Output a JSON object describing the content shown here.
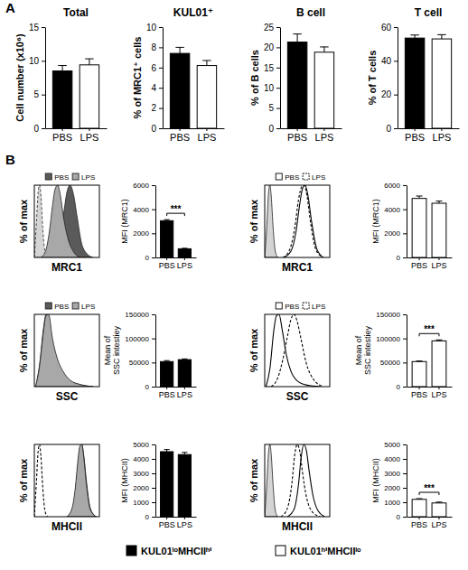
{
  "figure": {
    "panel_labels": [
      "A",
      "B"
    ],
    "groups": [
      {
        "name": "KUL01ˡᵒMHCIIʰⁱ",
        "color": "#000000"
      },
      {
        "name": "KUL01ʰⁱMHCIIˡᵒ",
        "color": "#ffffff"
      }
    ]
  },
  "chart_data": [
    {
      "type": "bar",
      "title": "Total",
      "ylabel": "Cell number (x10⁶)",
      "categories": [
        "PBS",
        "LPS"
      ],
      "values": [
        8.5,
        9.4
      ],
      "errors": [
        0.8,
        0.9
      ],
      "colors": [
        "#000000",
        "#ffffff"
      ],
      "ylim": [
        0,
        15
      ],
      "yticks": [
        0,
        5,
        10,
        15
      ]
    },
    {
      "type": "bar",
      "title": "KUL01⁺",
      "ylabel": "% of MRC1⁺ cells",
      "categories": [
        "PBS",
        "LPS"
      ],
      "values": [
        7.4,
        6.2
      ],
      "errors": [
        0.6,
        0.5
      ],
      "colors": [
        "#000000",
        "#ffffff"
      ],
      "ylim": [
        0,
        10
      ],
      "yticks": [
        0,
        2,
        4,
        6,
        8,
        10
      ]
    },
    {
      "type": "bar",
      "title": "B cell",
      "ylabel": "% of B cells",
      "categories": [
        "PBS",
        "LPS"
      ],
      "values": [
        21.3,
        18.8
      ],
      "errors": [
        2.0,
        1.3
      ],
      "colors": [
        "#000000",
        "#ffffff"
      ],
      "ylim": [
        0,
        25
      ],
      "yticks": [
        0,
        5,
        10,
        15,
        20,
        25
      ]
    },
    {
      "type": "bar",
      "title": "T cell",
      "ylabel": "% of T cells",
      "categories": [
        "PBS",
        "LPS"
      ],
      "values": [
        53.5,
        53.0
      ],
      "errors": [
        1.8,
        2.5
      ],
      "colors": [
        "#000000",
        "#ffffff"
      ],
      "ylim": [
        0,
        60
      ],
      "yticks": [
        0,
        20,
        40,
        60
      ]
    },
    {
      "type": "area",
      "xlabel": "MRC1",
      "ylabel": "% of max",
      "xlim": [
        0,
        100
      ],
      "ylim": [
        0,
        100
      ],
      "tick_labels": false,
      "legend": "upper right",
      "series": [
        {
          "type": "area",
          "color": "#d4d4d4",
          "line_style": "dashed",
          "x": [
            0,
            3,
            6,
            8,
            10,
            13,
            16,
            20
          ],
          "values": [
            0,
            45,
            92,
            100,
            88,
            40,
            10,
            0
          ]
        },
        {
          "name": "PBS",
          "type": "area",
          "color": "#5a5a5a",
          "line_style": "solid",
          "x": [
            20,
            30,
            38,
            45,
            50,
            55,
            60,
            66,
            72,
            80,
            90
          ],
          "values": [
            0,
            6,
            22,
            60,
            90,
            100,
            88,
            55,
            22,
            6,
            0
          ]
        },
        {
          "name": "LPS",
          "type": "area",
          "color": "#a8a8a8",
          "line_style": "solid",
          "x": [
            10,
            17,
            23,
            28,
            32,
            36,
            40,
            45,
            52,
            60,
            70
          ],
          "values": [
            0,
            8,
            35,
            72,
            95,
            100,
            86,
            55,
            25,
            8,
            0
          ]
        }
      ]
    },
    {
      "type": "bar",
      "ylabel": "MFI (MRC1)",
      "categories": [
        "PBS",
        "LPS"
      ],
      "values": [
        3050,
        720
      ],
      "errors": [
        90,
        40
      ],
      "colors": [
        "#000000",
        "#000000"
      ],
      "ylim": [
        0,
        6000
      ],
      "yticks": [
        0,
        2000,
        4000,
        6000
      ],
      "annotations": [
        "***"
      ]
    },
    {
      "type": "area",
      "xlabel": "MRC1",
      "ylabel": "% of max",
      "xlim": [
        0,
        100
      ],
      "ylim": [
        0,
        100
      ],
      "tick_labels": false,
      "legend": "upper right",
      "series": [
        {
          "type": "area",
          "color": "#d4d4d4",
          "line_style": "solid",
          "x": [
            0,
            3,
            6,
            8,
            10,
            13,
            16,
            20
          ],
          "values": [
            0,
            40,
            90,
            100,
            85,
            40,
            10,
            0
          ]
        },
        {
          "name": "PBS",
          "type": "line",
          "color": "#000000",
          "line_style": "solid",
          "x": [
            30,
            40,
            48,
            54,
            58,
            62,
            66,
            72,
            80,
            90
          ],
          "values": [
            0,
            8,
            35,
            75,
            95,
            100,
            88,
            50,
            12,
            0
          ]
        },
        {
          "name": "LPS",
          "type": "line",
          "color": "#000000",
          "line_style": "dashed",
          "x": [
            28,
            38,
            46,
            52,
            57,
            61,
            65,
            71,
            79,
            90
          ],
          "values": [
            0,
            10,
            40,
            80,
            98,
            100,
            85,
            45,
            10,
            0
          ]
        }
      ]
    },
    {
      "type": "bar",
      "ylabel": "MFI (MRC1)",
      "categories": [
        "PBS",
        "LPS"
      ],
      "values": [
        4900,
        4500
      ],
      "errors": [
        200,
        180
      ],
      "colors": [
        "#ffffff",
        "#ffffff"
      ],
      "ylim": [
        0,
        6000
      ],
      "yticks": [
        0,
        2000,
        4000,
        6000
      ]
    },
    {
      "type": "area",
      "xlabel": "SSC",
      "ylabel": "% of max",
      "xlim": [
        0,
        100
      ],
      "ylim": [
        0,
        100
      ],
      "tick_labels": false,
      "legend": "upper right",
      "series": [
        {
          "name": "PBS",
          "type": "area",
          "color": "#5a5a5a",
          "line_style": "solid",
          "x": [
            2,
            8,
            14,
            18,
            22,
            28,
            35,
            45,
            55,
            70,
            90
          ],
          "values": [
            0,
            30,
            80,
            100,
            92,
            62,
            36,
            18,
            8,
            3,
            0
          ]
        },
        {
          "name": "LPS",
          "type": "area",
          "color": "#a8a8a8",
          "line_style": "solid",
          "x": [
            2,
            8,
            14,
            18,
            22,
            28,
            35,
            45,
            55,
            70,
            90
          ],
          "values": [
            0,
            28,
            76,
            98,
            100,
            66,
            40,
            20,
            9,
            3,
            0
          ]
        }
      ]
    },
    {
      "type": "bar",
      "ylabel": "Mean of\nSSC intestiey",
      "categories": [
        "PBS",
        "LPS"
      ],
      "values": [
        52000,
        56000
      ],
      "errors": [
        2000,
        1500
      ],
      "colors": [
        "#000000",
        "#000000"
      ],
      "ylim": [
        0,
        150000
      ],
      "yticks": [
        0,
        50000,
        100000,
        150000
      ]
    },
    {
      "type": "area",
      "xlabel": "SSC",
      "ylabel": "% of max",
      "xlim": [
        0,
        100
      ],
      "ylim": [
        0,
        100
      ],
      "tick_labels": false,
      "legend": "upper right",
      "series": [
        {
          "name": "PBS",
          "type": "line",
          "color": "#000000",
          "line_style": "solid",
          "x": [
            2,
            8,
            14,
            18,
            22,
            27,
            33,
            40,
            50,
            65,
            85
          ],
          "values": [
            0,
            25,
            78,
            98,
            100,
            78,
            45,
            22,
            8,
            2,
            0
          ]
        },
        {
          "name": "LPS",
          "type": "line",
          "color": "#000000",
          "line_style": "dashed",
          "x": [
            10,
            20,
            28,
            35,
            40,
            45,
            50,
            56,
            64,
            75,
            90
          ],
          "values": [
            0,
            12,
            38,
            70,
            92,
            100,
            90,
            65,
            32,
            10,
            0
          ]
        }
      ]
    },
    {
      "type": "bar",
      "ylabel": "Mean of\nSSC intestiey",
      "categories": [
        "PBS",
        "LPS"
      ],
      "values": [
        52000,
        95000
      ],
      "errors": [
        1200,
        2000
      ],
      "colors": [
        "#ffffff",
        "#ffffff"
      ],
      "ylim": [
        0,
        150000
      ],
      "yticks": [
        0,
        50000,
        100000,
        150000
      ],
      "annotations": [
        "***"
      ]
    },
    {
      "type": "area",
      "xlabel": "MHCII",
      "ylabel": "% of max",
      "xlim": [
        0,
        100
      ],
      "ylim": [
        0,
        100
      ],
      "tick_labels": false,
      "series": [
        {
          "type": "line",
          "color": "#000000",
          "line_style": "dashed",
          "x": [
            0,
            3,
            6,
            8,
            10,
            13,
            16,
            20
          ],
          "values": [
            0,
            45,
            92,
            100,
            85,
            40,
            10,
            0
          ]
        },
        {
          "type": "area",
          "color": "#5a5a5a",
          "line_style": "solid",
          "x": [
            50,
            58,
            63,
            67,
            70,
            73,
            76,
            80,
            86,
            95
          ],
          "values": [
            0,
            10,
            35,
            72,
            95,
            100,
            85,
            50,
            12,
            0
          ]
        },
        {
          "type": "area",
          "color": "#a8a8a8",
          "line_style": "solid",
          "x": [
            50,
            58,
            63,
            67,
            70,
            73,
            76,
            80,
            86,
            95
          ],
          "values": [
            0,
            12,
            40,
            78,
            98,
            100,
            82,
            45,
            10,
            0
          ]
        }
      ]
    },
    {
      "type": "bar",
      "ylabel": "MFI (MHCII)",
      "categories": [
        "PBS",
        "LPS"
      ],
      "values": [
        4500,
        4300
      ],
      "errors": [
        150,
        150
      ],
      "colors": [
        "#000000",
        "#000000"
      ],
      "ylim": [
        0,
        5000
      ],
      "yticks": [
        0,
        1000,
        2000,
        3000,
        4000,
        5000
      ]
    },
    {
      "type": "area",
      "xlabel": "MHCII",
      "ylabel": "% of max",
      "xlim": [
        0,
        100
      ],
      "ylim": [
        0,
        100
      ],
      "tick_labels": false,
      "series": [
        {
          "type": "area",
          "color": "#d4d4d4",
          "line_style": "solid",
          "x": [
            0,
            3,
            6,
            8,
            10,
            13,
            16,
            20
          ],
          "values": [
            0,
            42,
            90,
            100,
            86,
            42,
            10,
            0
          ]
        },
        {
          "type": "line",
          "color": "#000000",
          "line_style": "solid",
          "x": [
            35,
            45,
            52,
            56,
            60,
            64,
            68,
            74,
            82,
            92
          ],
          "values": [
            0,
            10,
            45,
            82,
            100,
            92,
            65,
            30,
            8,
            0
          ]
        },
        {
          "type": "line",
          "color": "#000000",
          "line_style": "dashed",
          "x": [
            25,
            35,
            42,
            46,
            50,
            54,
            58,
            64,
            72,
            85
          ],
          "values": [
            0,
            12,
            48,
            85,
            100,
            90,
            62,
            28,
            8,
            0
          ]
        }
      ]
    },
    {
      "type": "bar",
      "ylabel": "MFI (MHCII)",
      "categories": [
        "PBS",
        "LPS"
      ],
      "values": [
        1200,
        950
      ],
      "errors": [
        50,
        60
      ],
      "colors": [
        "#ffffff",
        "#ffffff"
      ],
      "ylim": [
        0,
        5000
      ],
      "yticks": [
        0,
        1000,
        2000,
        3000,
        4000,
        5000
      ],
      "annotations": [
        "***"
      ]
    }
  ]
}
